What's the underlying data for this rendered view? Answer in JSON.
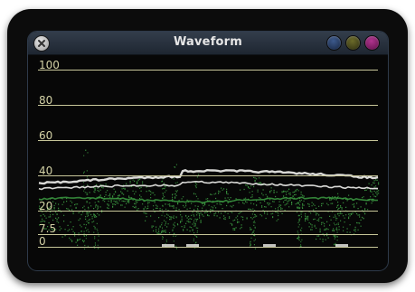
{
  "window": {
    "title": "Waveform"
  },
  "scale": {
    "levels": [
      {
        "label": "100",
        "value": 100
      },
      {
        "label": "80",
        "value": 80
      },
      {
        "label": "60",
        "value": 60
      },
      {
        "label": "40",
        "value": 40
      },
      {
        "label": "20",
        "value": 20
      },
      {
        "label": "7.5",
        "value": 7.5
      },
      {
        "label": "0",
        "value": 0
      }
    ]
  },
  "colors": {
    "gridline": "#c8c79a",
    "trace": "#3fa345",
    "trace_highlight": "#f2f2ee",
    "traffic_blue": "#2a3f66",
    "traffic_olive": "#4a4a1c",
    "traffic_magenta": "#8a1f6c"
  },
  "icons": {
    "close": "close-icon",
    "resize": "resize-grip-icon"
  }
}
